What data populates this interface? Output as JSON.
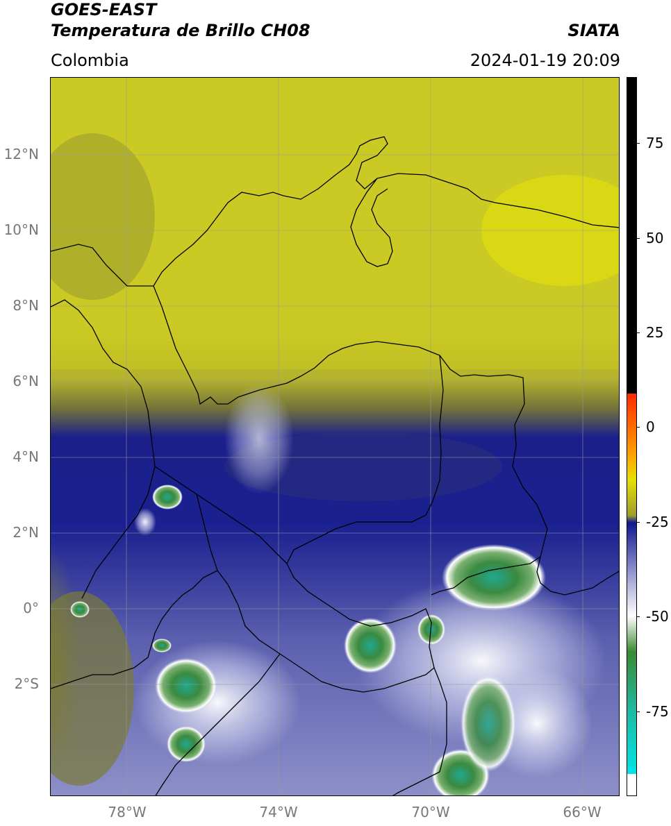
{
  "header": {
    "title_line1": "GOES-EAST",
    "title_line2": "Temperatura de Brillo CH08",
    "source": "SIATA",
    "region": "Colombia",
    "timestamp": "2024-01-19 20:09"
  },
  "map": {
    "lon_range": [
      -80,
      -65
    ],
    "lat_range": [
      -5.2,
      13.8
    ],
    "grid": true,
    "lat_ticks": [
      {
        "value": 12,
        "label": "12°N"
      },
      {
        "value": 10,
        "label": "10°N"
      },
      {
        "value": 8,
        "label": "8°N"
      },
      {
        "value": 6,
        "label": "6°N"
      },
      {
        "value": 4,
        "label": "4°N"
      },
      {
        "value": 2,
        "label": "2°N"
      },
      {
        "value": 0,
        "label": "0°"
      },
      {
        "value": -2,
        "label": "2°S"
      }
    ],
    "lon_ticks": [
      {
        "value": -78,
        "label": "78°W"
      },
      {
        "value": -74,
        "label": "74°W"
      },
      {
        "value": -70,
        "label": "70°W"
      },
      {
        "value": -66,
        "label": "66°W"
      }
    ]
  },
  "colorbar": {
    "range": [
      -95,
      95
    ],
    "ticks": [
      {
        "value": 75,
        "label": "75"
      },
      {
        "value": 50,
        "label": "50"
      },
      {
        "value": 25,
        "label": "25"
      },
      {
        "value": 0,
        "label": "0"
      },
      {
        "value": -25,
        "label": "-25"
      },
      {
        "value": -50,
        "label": "-50"
      },
      {
        "value": -75,
        "label": "-75"
      }
    ],
    "colors": {
      "black": "#000000",
      "red": "#ff2a00",
      "orange": "#ff9a00",
      "yellow": "#e6e000",
      "olive": "#9d9d30",
      "navy": "#101790",
      "lavender": "#a7aad6",
      "white": "#ffffff",
      "green": "#3a8a32",
      "teal": "#20b8a0",
      "cyan": "#00e5e5"
    }
  }
}
